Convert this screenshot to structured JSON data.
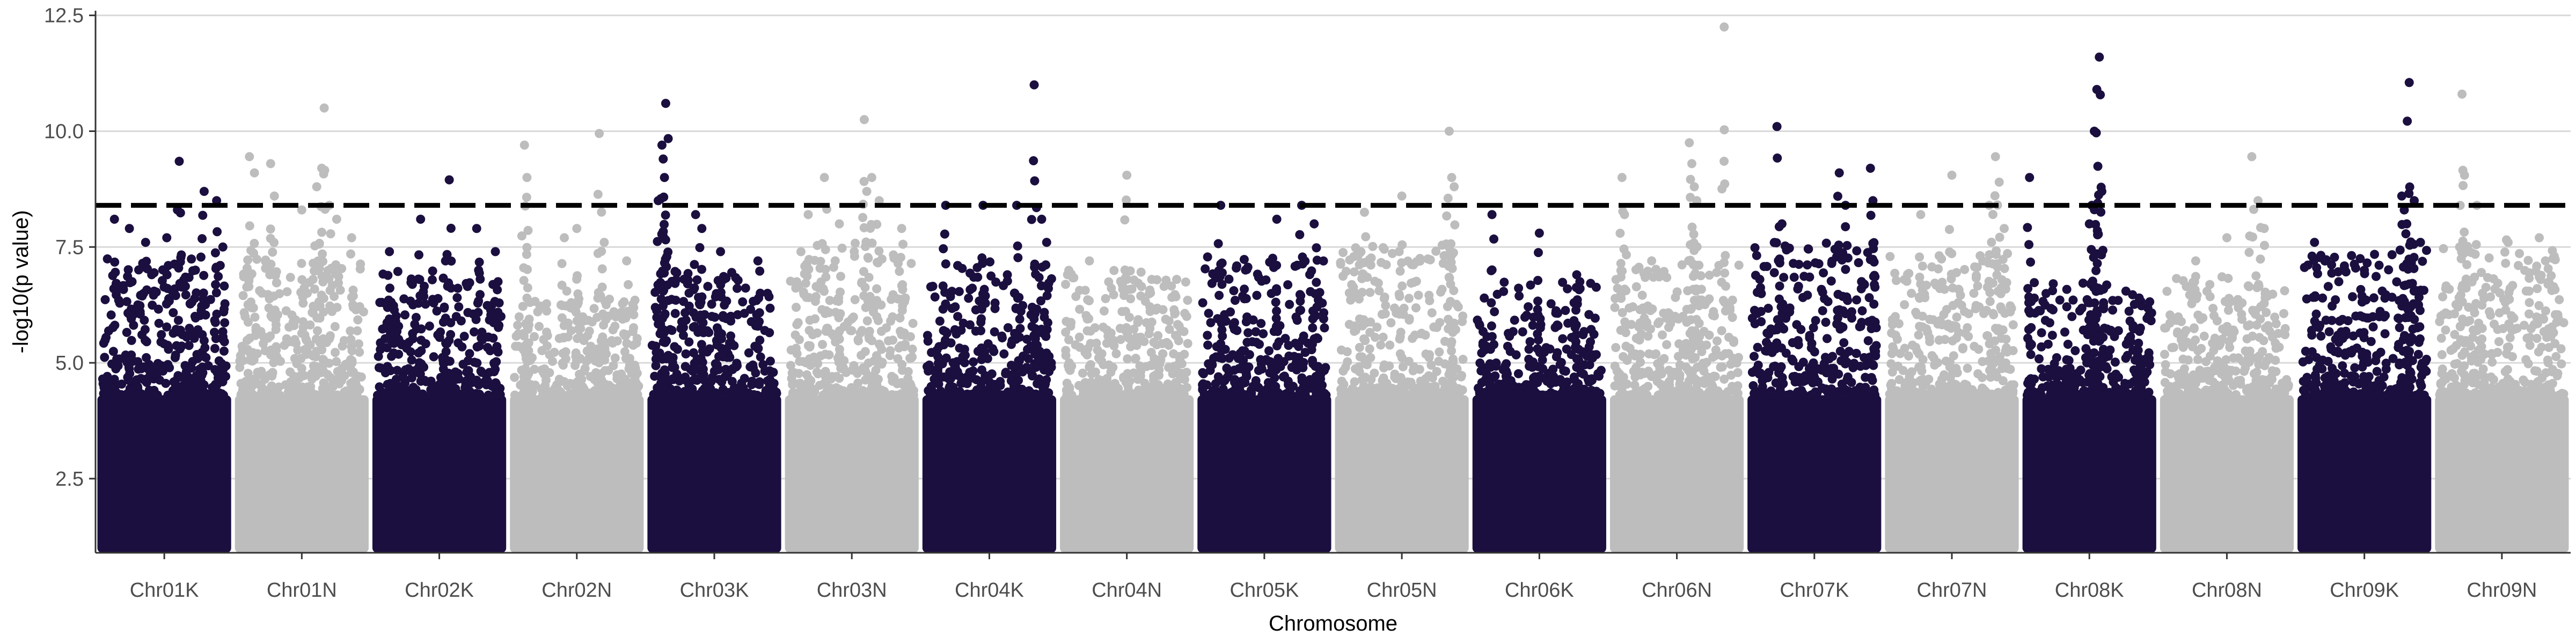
{
  "chart_data": {
    "type": "scatter",
    "subtype": "manhattan",
    "title": "",
    "xlabel": "Chromosome",
    "ylabel": "-log10(p value)",
    "ylim": [
      0.9,
      12.6
    ],
    "yticks": [
      2.5,
      5.0,
      7.5,
      10.0,
      12.5
    ],
    "ytick_labels": [
      "2.5",
      "5.0",
      "7.5",
      "10.0",
      "12.5"
    ],
    "grid": "horizontal major gridlines",
    "legend": "none",
    "threshold": {
      "value": 8.4,
      "style": "dashed",
      "color": "#000000"
    },
    "colors": {
      "odd": "#1b0f3f",
      "even": "#bdbdbd"
    },
    "categories": [
      "Chr01K",
      "Chr01N",
      "Chr02K",
      "Chr02N",
      "Chr03K",
      "Chr03N",
      "Chr04K",
      "Chr04N",
      "Chr05K",
      "Chr05N",
      "Chr06K",
      "Chr06N",
      "Chr07K",
      "Chr07N",
      "Chr08K",
      "Chr08N",
      "Chr09K",
      "Chr09N"
    ],
    "series": [
      {
        "chromosome": "Chr01K",
        "color": "#1b0f3f",
        "dense_max": 7.3,
        "peaks": [
          [
            0.1,
            8.1
          ],
          [
            0.22,
            7.9
          ],
          [
            0.35,
            7.6
          ],
          [
            0.52,
            7.7
          ],
          [
            0.62,
            9.35
          ],
          [
            0.75,
            7.0
          ],
          [
            0.82,
            8.7
          ],
          [
            0.92,
            8.5
          ],
          [
            0.97,
            7.5
          ]
        ]
      },
      {
        "chromosome": "Chr01N",
        "color": "#bdbdbd",
        "dense_max": 7.4,
        "peaks": [
          [
            0.08,
            9.45
          ],
          [
            0.12,
            9.1
          ],
          [
            0.25,
            9.3
          ],
          [
            0.28,
            8.6
          ],
          [
            0.5,
            8.3
          ],
          [
            0.62,
            8.8
          ],
          [
            0.66,
            9.2
          ],
          [
            0.68,
            10.5
          ],
          [
            0.72,
            8.4
          ],
          [
            0.78,
            8.1
          ],
          [
            0.9,
            7.7
          ]
        ]
      },
      {
        "chromosome": "Chr02K",
        "color": "#1b0f3f",
        "dense_max": 7.0,
        "peaks": [
          [
            0.1,
            7.4
          ],
          [
            0.35,
            8.1
          ],
          [
            0.55,
            7.2
          ],
          [
            0.58,
            8.95
          ],
          [
            0.8,
            7.9
          ],
          [
            0.95,
            7.4
          ]
        ]
      },
      {
        "chromosome": "Chr02N",
        "color": "#bdbdbd",
        "dense_max": 6.4,
        "peaks": [
          [
            0.08,
            9.7
          ],
          [
            0.1,
            9.0
          ],
          [
            0.4,
            7.7
          ],
          [
            0.5,
            7.9
          ],
          [
            0.68,
            9.95
          ],
          [
            0.72,
            7.6
          ],
          [
            0.9,
            7.2
          ]
        ]
      },
      {
        "chromosome": "Chr03K",
        "color": "#1b0f3f",
        "dense_max": 7.0,
        "peaks": [
          [
            0.05,
            8.5
          ],
          [
            0.08,
            9.7
          ],
          [
            0.09,
            9.4
          ],
          [
            0.1,
            9.0
          ],
          [
            0.11,
            10.6
          ],
          [
            0.35,
            8.2
          ],
          [
            0.4,
            7.9
          ],
          [
            0.55,
            7.4
          ],
          [
            0.85,
            7.2
          ]
        ]
      },
      {
        "chromosome": "Chr03N",
        "color": "#bdbdbd",
        "dense_max": 7.6,
        "peaks": [
          [
            0.15,
            8.2
          ],
          [
            0.28,
            9.0
          ],
          [
            0.4,
            8.0
          ],
          [
            0.6,
            10.25
          ],
          [
            0.62,
            8.7
          ],
          [
            0.66,
            9.0
          ],
          [
            0.72,
            8.5
          ],
          [
            0.9,
            7.9
          ]
        ]
      },
      {
        "chromosome": "Chr04K",
        "color": "#1b0f3f",
        "dense_max": 7.2,
        "peaks": [
          [
            0.15,
            8.4
          ],
          [
            0.45,
            8.4
          ],
          [
            0.72,
            8.4
          ],
          [
            0.86,
            11.0
          ],
          [
            0.92,
            8.1
          ],
          [
            0.96,
            7.6
          ]
        ]
      },
      {
        "chromosome": "Chr04N",
        "color": "#bdbdbd",
        "dense_max": 7.0,
        "peaks": [
          [
            0.2,
            7.2
          ],
          [
            0.5,
            9.05
          ],
          [
            0.7,
            6.8
          ],
          [
            0.9,
            6.8
          ]
        ]
      },
      {
        "chromosome": "Chr05K",
        "color": "#1b0f3f",
        "dense_max": 7.3,
        "peaks": [
          [
            0.15,
            8.4
          ],
          [
            0.6,
            8.1
          ],
          [
            0.8,
            8.4
          ],
          [
            0.9,
            8.0
          ]
        ]
      },
      {
        "chromosome": "Chr05N",
        "color": "#bdbdbd",
        "dense_max": 7.6,
        "peaks": [
          [
            0.2,
            8.25
          ],
          [
            0.5,
            8.6
          ],
          [
            0.88,
            10.0
          ],
          [
            0.9,
            9.0
          ],
          [
            0.92,
            8.8
          ]
        ]
      },
      {
        "chromosome": "Chr06K",
        "color": "#1b0f3f",
        "dense_max": 6.8,
        "peaks": [
          [
            0.12,
            8.2
          ],
          [
            0.5,
            7.8
          ],
          [
            0.8,
            6.9
          ]
        ]
      },
      {
        "chromosome": "Chr06N",
        "color": "#bdbdbd",
        "dense_max": 7.2,
        "peaks": [
          [
            0.06,
            9.0
          ],
          [
            0.08,
            8.2
          ],
          [
            0.6,
            9.75
          ],
          [
            0.62,
            9.3
          ],
          [
            0.64,
            8.8
          ],
          [
            0.66,
            8.5
          ],
          [
            0.88,
            12.25
          ]
        ]
      },
      {
        "chromosome": "Chr07K",
        "color": "#1b0f3f",
        "dense_max": 7.6,
        "peaks": [
          [
            0.2,
            10.1
          ],
          [
            0.24,
            8.0
          ],
          [
            0.7,
            9.1
          ],
          [
            0.75,
            8.4
          ],
          [
            0.95,
            9.2
          ],
          [
            0.97,
            8.5
          ]
        ]
      },
      {
        "chromosome": "Chr07N",
        "color": "#bdbdbd",
        "dense_max": 7.4,
        "peaks": [
          [
            0.25,
            8.2
          ],
          [
            0.5,
            9.05
          ],
          [
            0.8,
            8.4
          ],
          [
            0.85,
            9.45
          ],
          [
            0.88,
            8.9
          ],
          [
            0.92,
            7.9
          ]
        ]
      },
      {
        "chromosome": "Chr08K",
        "color": "#1b0f3f",
        "dense_max": 6.8,
        "peaks": [
          [
            0.02,
            9.0
          ],
          [
            0.5,
            8.0
          ],
          [
            0.52,
            8.4
          ],
          [
            0.54,
            10.0
          ],
          [
            0.56,
            10.9
          ],
          [
            0.58,
            11.6
          ],
          [
            0.6,
            8.7
          ],
          [
            0.9,
            6.4
          ]
        ]
      },
      {
        "chromosome": "Chr08N",
        "color": "#bdbdbd",
        "dense_max": 6.9,
        "peaks": [
          [
            0.25,
            7.2
          ],
          [
            0.5,
            7.7
          ],
          [
            0.7,
            9.45
          ],
          [
            0.75,
            8.5
          ],
          [
            0.8,
            7.9
          ]
        ]
      },
      {
        "chromosome": "Chr09K",
        "color": "#1b0f3f",
        "dense_max": 7.5,
        "peaks": [
          [
            0.1,
            7.6
          ],
          [
            0.5,
            7.0
          ],
          [
            0.8,
            8.6
          ],
          [
            0.82,
            8.3
          ],
          [
            0.84,
            8.0
          ],
          [
            0.86,
            11.05
          ],
          [
            0.9,
            8.5
          ],
          [
            0.95,
            7.6
          ]
        ]
      },
      {
        "chromosome": "Chr09N",
        "color": "#bdbdbd",
        "dense_max": 7.7,
        "peaks": [
          [
            0.18,
            10.8
          ],
          [
            0.2,
            9.05
          ],
          [
            0.3,
            8.4
          ],
          [
            0.55,
            7.6
          ],
          [
            0.8,
            7.7
          ],
          [
            0.92,
            7.3
          ]
        ]
      }
    ]
  }
}
